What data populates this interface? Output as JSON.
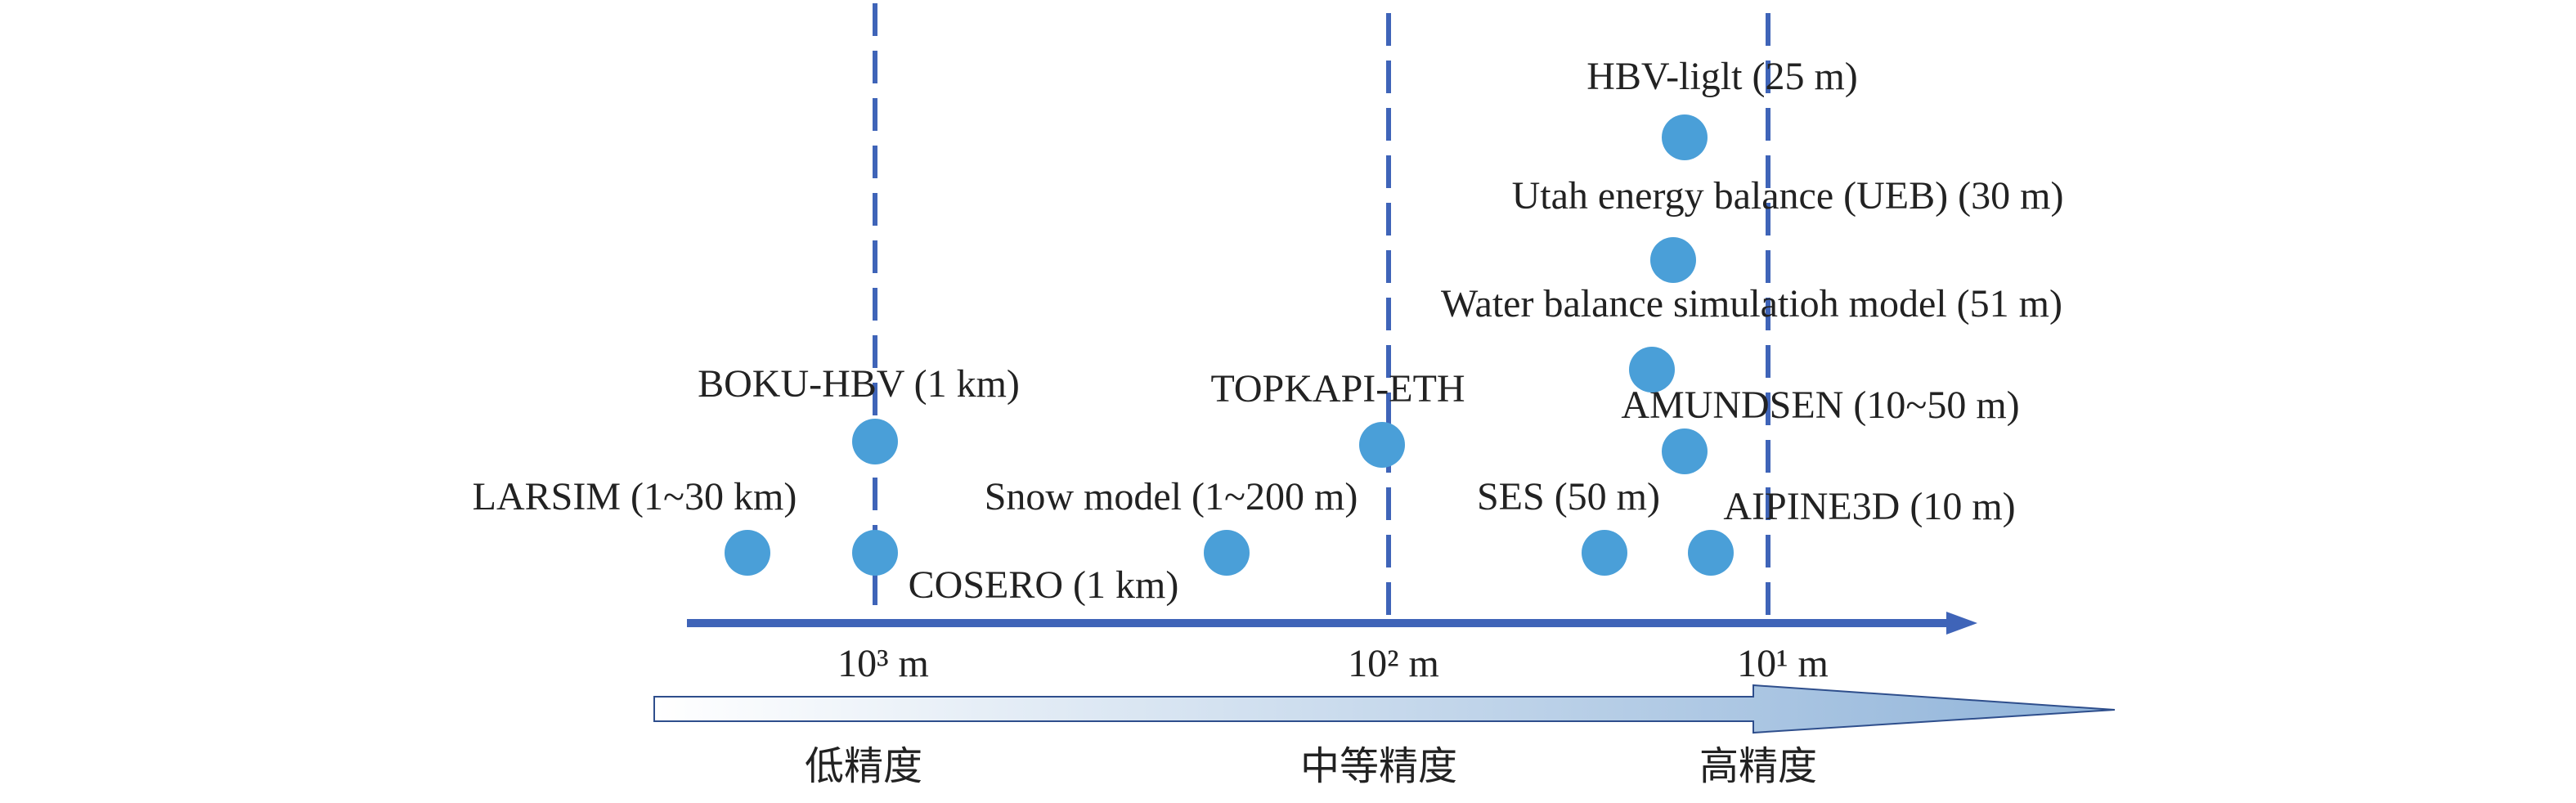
{
  "axis": {
    "ticks": [
      "10³ m",
      "10² m",
      "10¹ m"
    ]
  },
  "precision": {
    "labels": [
      "低精度",
      "中等精度",
      "高精度"
    ]
  },
  "nodes": [
    {
      "label": "LARSIM (1~30 km)"
    },
    {
      "label": "COSERO (1 km)"
    },
    {
      "label": "BOKU-HBV (1 km)"
    },
    {
      "label": "Snow model (1~200 m)"
    },
    {
      "label": "TOPKAPI-ETH"
    },
    {
      "label": "SES (50 m)"
    },
    {
      "label": "AIPINE3D (10 m)"
    },
    {
      "label": "AMUNDSEN (10~50 m)"
    },
    {
      "label": "Water balance simulatioh model (51 m)"
    },
    {
      "label": "Utah energy balance (UEB) (30 m)"
    },
    {
      "label": "HBV-liglt (25 m)"
    }
  ]
}
